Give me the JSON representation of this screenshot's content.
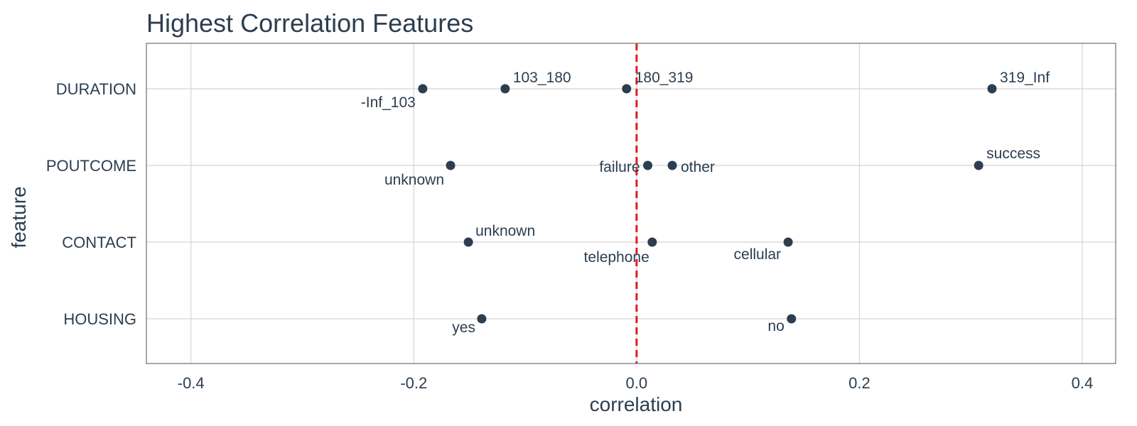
{
  "chart_data": {
    "type": "scatter",
    "title": "Highest Correlation Features",
    "xlabel": "correlation",
    "ylabel": "feature",
    "xlim": [
      -0.44,
      0.43
    ],
    "x_ticks": [
      -0.4,
      -0.2,
      0.0,
      0.2,
      0.4
    ],
    "x_tick_labels": [
      "-0.4",
      "-0.2",
      "0.0",
      "0.2",
      "0.4"
    ],
    "categories": [
      "DURATION",
      "POUTCOME",
      "CONTACT",
      "HOUSING"
    ],
    "grid": true,
    "reference_line": {
      "x": 0,
      "color": "#e41a1c",
      "style": "dashed"
    },
    "point_color": "#2c3e50",
    "points": [
      {
        "feature": "DURATION",
        "label": "-Inf_103",
        "x": -0.192
      },
      {
        "feature": "DURATION",
        "label": "103_180",
        "x": -0.118
      },
      {
        "feature": "DURATION",
        "label": "180_319",
        "x": -0.009
      },
      {
        "feature": "DURATION",
        "label": "319_Inf",
        "x": 0.319
      },
      {
        "feature": "POUTCOME",
        "label": "unknown",
        "x": -0.167
      },
      {
        "feature": "POUTCOME",
        "label": "failure",
        "x": 0.01
      },
      {
        "feature": "POUTCOME",
        "label": "other",
        "x": 0.032
      },
      {
        "feature": "POUTCOME",
        "label": "success",
        "x": 0.307
      },
      {
        "feature": "CONTACT",
        "label": "unknown",
        "x": -0.151
      },
      {
        "feature": "CONTACT",
        "label": "telephone",
        "x": 0.014
      },
      {
        "feature": "CONTACT",
        "label": "cellular",
        "x": 0.136
      },
      {
        "feature": "HOUSING",
        "label": "yes",
        "x": -0.139
      },
      {
        "feature": "HOUSING",
        "label": "no",
        "x": 0.139
      }
    ]
  }
}
